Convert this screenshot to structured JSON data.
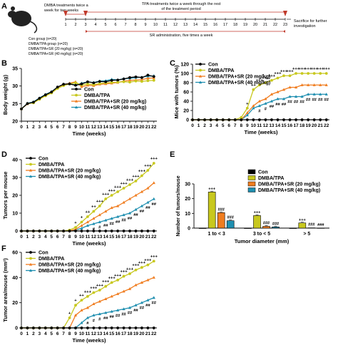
{
  "colors": {
    "con": "#000000",
    "dmba": "#c8c81e",
    "sr20": "#f07d20",
    "sr40": "#1f8fb0",
    "arrow": "#c0392b"
  },
  "schematic": {
    "panel": "A",
    "top_left": [
      "DMBA treatments twice a",
      "week for two weeks"
    ],
    "top_center": [
      "TPA treatments twice a week through the rest",
      "of the treatment period"
    ],
    "bottom_center": "SR administration, five times a week",
    "right": [
      "Sacrifice for further",
      "investigation"
    ],
    "ticks": [
      "1",
      "2",
      "3",
      "4",
      "5",
      "6",
      "7",
      "8",
      "9",
      "10",
      "11",
      "12",
      "13",
      "14",
      "15",
      "16",
      "17",
      "18",
      "19",
      "20",
      "21",
      "22",
      "23"
    ],
    "groups": [
      "Con group (n=20)",
      "DMBA/TPA group (n=20)",
      "DMBA/TPA+SR (20 mg/kg) (n=20)",
      "DMBA/TPA+SR (40 mg/kg) (n=20)"
    ]
  },
  "legend_labels": [
    "Con",
    "DMBA/TPA",
    "DMBA/TPA+SR (20 mg/kg)",
    "DMBA/TPA+SR (40 mg/kg)"
  ],
  "chart_data": [
    {
      "panel": "B",
      "type": "line",
      "xlabel": "Time (weeks)",
      "ylabel": "Body weight (g)",
      "x": [
        0,
        1,
        2,
        3,
        4,
        5,
        6,
        7,
        8,
        9,
        10,
        11,
        12,
        13,
        14,
        15,
        16,
        17,
        18,
        19,
        20,
        21,
        22
      ],
      "xticks": [
        0,
        1,
        2,
        3,
        4,
        5,
        6,
        7,
        8,
        9,
        10,
        11,
        12,
        13,
        14,
        15,
        16,
        17,
        18,
        19,
        20,
        21,
        22
      ],
      "ylim": [
        20,
        35
      ],
      "yticks": [
        20,
        25,
        30,
        35
      ],
      "series": [
        {
          "name": "Con",
          "values": [
            23.5,
            25.0,
            25.4,
            26.5,
            27.5,
            28.3,
            29.7,
            30.5,
            30.6,
            30.2,
            30.6,
            31.2,
            30.9,
            31.3,
            31.2,
            31.6,
            31.7,
            32.0,
            32.4,
            32.6,
            32.4,
            33.1,
            32.7
          ]
        },
        {
          "name": "DMBA/TPA",
          "values": [
            23.5,
            25.0,
            25.2,
            26.2,
            27.2,
            28.0,
            29.3,
            30.1,
            30.6,
            30.9,
            30.3,
            30.6,
            30.4,
            30.7,
            30.9,
            31.0,
            31.1,
            31.2,
            31.1,
            31.4,
            31.3,
            31.5,
            31.6
          ]
        },
        {
          "name": "DMBA/TPA+SR (20 mg/kg)",
          "values": [
            23.5,
            24.9,
            25.3,
            26.4,
            27.3,
            28.2,
            29.6,
            30.4,
            30.8,
            31.2,
            29.8,
            30.2,
            30.1,
            30.5,
            30.6,
            30.8,
            31.0,
            31.4,
            31.6,
            31.7,
            31.8,
            32.2,
            32.3
          ]
        },
        {
          "name": "DMBA/TPA+SR (40 mg/kg)",
          "values": [
            23.5,
            25.1,
            25.5,
            26.6,
            27.6,
            28.4,
            29.7,
            30.5,
            30.6,
            30.3,
            30.8,
            31.2,
            31.0,
            31.4,
            31.5,
            31.9,
            31.7,
            32.1,
            32.2,
            32.4,
            32.5,
            32.8,
            32.9
          ]
        }
      ]
    },
    {
      "panel": "C",
      "type": "line",
      "xlabel": "Time (weeks)",
      "ylabel": "Mice with tumors (%)",
      "x": [
        0,
        1,
        2,
        3,
        4,
        5,
        6,
        7,
        8,
        9,
        10,
        11,
        12,
        13,
        14,
        15,
        16,
        17,
        18,
        19,
        20,
        21,
        22
      ],
      "xticks": [
        0,
        1,
        2,
        3,
        4,
        5,
        6,
        7,
        8,
        9,
        10,
        11,
        12,
        13,
        14,
        15,
        16,
        17,
        18,
        19,
        20,
        21,
        22
      ],
      "ylim": [
        0,
        120
      ],
      "yticks": [
        0,
        20,
        40,
        60,
        80,
        100,
        120
      ],
      "series": [
        {
          "name": "Con",
          "values": [
            0,
            0,
            0,
            0,
            0,
            0,
            0,
            0,
            0,
            0,
            0,
            0,
            0,
            0,
            0,
            0,
            0,
            0,
            0,
            0,
            0,
            0,
            0
          ]
        },
        {
          "name": "DMBA/TPA",
          "values": [
            0,
            0,
            0,
            0,
            0,
            0,
            0,
            0,
            5,
            25,
            65,
            75,
            80,
            85,
            90,
            95,
            95,
            100,
            100,
            100,
            100,
            100,
            100
          ]
        },
        {
          "name": "DMBA/TPA+SR (20 mg/kg)",
          "values": [
            0,
            0,
            0,
            0,
            0,
            0,
            0,
            0,
            0,
            15,
            30,
            40,
            45,
            55,
            60,
            65,
            70,
            70,
            75,
            75,
            75,
            75,
            75
          ]
        },
        {
          "name": "DMBA/TPA+SR (40 mg/kg)",
          "values": [
            0,
            0,
            0,
            0,
            0,
            0,
            0,
            0,
            0,
            10,
            25,
            30,
            35,
            40,
            45,
            45,
            50,
            50,
            50,
            55,
            55,
            55,
            55
          ]
        }
      ],
      "annotations": [
        {
          "x": 9,
          "text": "+"
        },
        {
          "x": 10,
          "text": "++"
        },
        {
          "x": 11,
          "text": "+++"
        },
        {
          "x": 12,
          "text": "+++"
        },
        {
          "x": 13,
          "text": "+++"
        },
        {
          "x": 14,
          "text": "+++"
        },
        {
          "x": 15,
          "text": "+++"
        },
        {
          "x": 16,
          "text": "+++"
        },
        {
          "x": 17,
          "text": "+++"
        },
        {
          "x": 18,
          "text": "+++"
        },
        {
          "x": 19,
          "text": "+++"
        },
        {
          "x": 20,
          "text": "+++"
        },
        {
          "x": 21,
          "text": "+++"
        },
        {
          "x": 22,
          "text": "+++"
        },
        {
          "x": 11,
          "text": "#"
        },
        {
          "x": 12,
          "text": "#"
        },
        {
          "x": 13,
          "text": "##"
        },
        {
          "x": 14,
          "text": "##"
        },
        {
          "x": 15,
          "text": "##"
        },
        {
          "x": 16,
          "text": "##"
        },
        {
          "x": 17,
          "text": "##"
        },
        {
          "x": 18,
          "text": "##"
        },
        {
          "x": 19,
          "text": "##"
        },
        {
          "x": 20,
          "text": "##"
        },
        {
          "x": 21,
          "text": "##"
        },
        {
          "x": 22,
          "text": "##"
        }
      ]
    },
    {
      "panel": "D",
      "type": "line",
      "xlabel": "Time (weeks)",
      "ylabel": "Tumors per mouse",
      "x": [
        0,
        1,
        2,
        3,
        4,
        5,
        6,
        7,
        8,
        9,
        10,
        11,
        12,
        13,
        14,
        15,
        16,
        17,
        18,
        19,
        20,
        21,
        22
      ],
      "xticks": [
        0,
        1,
        2,
        3,
        4,
        5,
        6,
        7,
        8,
        9,
        10,
        11,
        12,
        13,
        14,
        15,
        16,
        17,
        18,
        19,
        20,
        21,
        22
      ],
      "ylim": [
        0,
        40
      ],
      "yticks": [
        0,
        10,
        20,
        30,
        40
      ],
      "series": [
        {
          "name": "Con",
          "values": [
            0,
            0,
            0,
            0,
            0,
            0,
            0,
            0,
            0,
            0,
            0,
            0,
            0,
            0,
            0,
            0,
            0,
            0,
            0,
            0,
            0,
            0,
            0
          ]
        },
        {
          "name": "DMBA/TPA",
          "values": [
            0,
            0,
            0,
            0,
            0,
            0,
            0,
            0,
            0.5,
            2,
            5,
            8,
            11,
            14,
            18,
            20,
            22,
            24,
            26,
            28,
            31,
            34,
            38
          ]
        },
        {
          "name": "DMBA/TPA+SR (20 mg/kg)",
          "values": [
            0,
            0,
            0,
            0,
            0,
            0,
            0,
            0,
            0,
            1,
            3,
            5,
            7,
            9,
            11,
            13,
            14,
            16,
            18,
            20,
            22,
            24,
            27
          ]
        },
        {
          "name": "DMBA/TPA+SR (40 mg/kg)",
          "values": [
            0,
            0,
            0,
            0,
            0,
            0,
            0,
            0,
            0,
            0.5,
            1.5,
            3,
            4,
            5,
            6,
            7,
            8,
            9,
            10,
            12,
            14,
            16,
            18
          ]
        }
      ],
      "annotations": [
        {
          "x": 9,
          "text": "+"
        },
        {
          "x": 10,
          "text": "+"
        },
        {
          "x": 11,
          "text": "++"
        },
        {
          "x": 12,
          "text": "++"
        },
        {
          "x": 13,
          "text": "+++"
        },
        {
          "x": 14,
          "text": "+++"
        },
        {
          "x": 15,
          "text": "+++"
        },
        {
          "x": 16,
          "text": "+++"
        },
        {
          "x": 17,
          "text": "+++"
        },
        {
          "x": 18,
          "text": "+++"
        },
        {
          "x": 19,
          "text": "+++"
        },
        {
          "x": 20,
          "text": "+++"
        },
        {
          "x": 21,
          "text": "+++"
        },
        {
          "x": 22,
          "text": "+++"
        },
        {
          "x": 12,
          "text": "#"
        },
        {
          "x": 13,
          "text": "#"
        },
        {
          "x": 14,
          "text": "##"
        },
        {
          "x": 15,
          "text": "##"
        },
        {
          "x": 16,
          "text": "##"
        },
        {
          "x": 17,
          "text": "##"
        },
        {
          "x": 18,
          "text": "##"
        },
        {
          "x": 19,
          "text": "##"
        },
        {
          "x": 20,
          "text": "##"
        },
        {
          "x": 21,
          "text": "##"
        },
        {
          "x": 22,
          "text": "##"
        }
      ]
    },
    {
      "panel": "E",
      "type": "bar",
      "xlabel": "Tumor diameter (mm)",
      "ylabel": "Number of tumors/mouse",
      "categories": [
        "1 to < 3",
        "3 to < 5",
        "> 5"
      ],
      "ylim": [
        0,
        30
      ],
      "yticks": [
        0,
        10,
        20,
        30
      ],
      "series": [
        {
          "name": "Con",
          "values": [
            0,
            0,
            0
          ]
        },
        {
          "name": "DMBA/TPA",
          "values": [
            24.5,
            8.5,
            3.5
          ]
        },
        {
          "name": "DMBA/TPA+SR (20 mg/kg)",
          "values": [
            10.5,
            1.2,
            0.2
          ]
        },
        {
          "name": "DMBA/TPA+SR (40 mg/kg)",
          "values": [
            5.0,
            0.8,
            0.1
          ]
        }
      ],
      "annotations": [
        {
          "category": 0,
          "series": 1,
          "text": "+++"
        },
        {
          "category": 0,
          "series": 2,
          "text": "###"
        },
        {
          "category": 0,
          "series": 3,
          "text": "###"
        },
        {
          "category": 1,
          "series": 1,
          "text": "+++"
        },
        {
          "category": 1,
          "series": 2,
          "text": "###"
        },
        {
          "category": 1,
          "series": 3,
          "text": "###"
        },
        {
          "category": 2,
          "series": 1,
          "text": "+++"
        },
        {
          "category": 2,
          "series": 2,
          "text": "###"
        },
        {
          "category": 2,
          "series": 3,
          "text": "###"
        }
      ]
    },
    {
      "panel": "F",
      "type": "line",
      "xlabel": "Time (weeks)",
      "ylabel": "Tumor area/mouse (mm²)",
      "x": [
        0,
        1,
        2,
        3,
        4,
        5,
        6,
        7,
        8,
        9,
        10,
        11,
        12,
        13,
        14,
        15,
        16,
        17,
        18,
        19,
        20,
        21,
        22
      ],
      "xticks": [
        0,
        1,
        2,
        3,
        4,
        5,
        6,
        7,
        8,
        9,
        10,
        11,
        12,
        13,
        14,
        15,
        16,
        17,
        18,
        19,
        20,
        21,
        22
      ],
      "ylim": [
        0,
        60
      ],
      "yticks": [
        0,
        20,
        40,
        60
      ],
      "series": [
        {
          "name": "Con",
          "values": [
            0,
            0,
            0,
            0,
            0,
            0,
            0,
            0,
            0,
            0,
            0,
            0,
            0,
            0,
            0,
            0,
            0,
            0,
            0,
            0,
            0,
            0,
            0
          ]
        },
        {
          "name": "DMBA/TPA",
          "values": [
            0,
            0,
            0,
            0,
            0,
            0,
            0,
            0,
            8,
            18,
            22,
            25,
            28,
            30,
            33,
            36,
            38,
            41,
            43,
            46,
            48,
            50,
            53
          ]
        },
        {
          "name": "DMBA/TPA+SR (20 mg/kg)",
          "values": [
            0,
            0,
            0,
            0,
            0,
            0,
            0,
            0,
            0,
            10,
            14,
            16,
            19,
            21,
            23,
            25,
            27,
            29,
            31,
            34,
            36,
            38,
            40
          ]
        },
        {
          "name": "DMBA/TPA+SR (40 mg/kg)",
          "values": [
            0,
            0,
            0,
            0,
            0,
            0,
            0,
            0,
            0,
            0,
            4,
            8,
            10,
            11,
            12,
            13,
            14,
            15,
            16,
            18,
            20,
            22,
            24
          ]
        }
      ],
      "annotations": [
        {
          "x": 8,
          "text": "+"
        },
        {
          "x": 9,
          "text": "+"
        },
        {
          "x": 10,
          "text": "++"
        },
        {
          "x": 11,
          "text": "+++"
        },
        {
          "x": 12,
          "text": "+++"
        },
        {
          "x": 13,
          "text": "+++"
        },
        {
          "x": 14,
          "text": "+++"
        },
        {
          "x": 15,
          "text": "+++"
        },
        {
          "x": 16,
          "text": "+++"
        },
        {
          "x": 17,
          "text": "+++"
        },
        {
          "x": 18,
          "text": "+++"
        },
        {
          "x": 19,
          "text": "+++"
        },
        {
          "x": 20,
          "text": "+++"
        },
        {
          "x": 21,
          "text": "+++"
        },
        {
          "x": 22,
          "text": "+++"
        },
        {
          "x": 11,
          "text": "#"
        },
        {
          "x": 12,
          "text": "#"
        },
        {
          "x": 13,
          "text": "#"
        },
        {
          "x": 14,
          "text": "##"
        },
        {
          "x": 15,
          "text": "##"
        },
        {
          "x": 16,
          "text": "##"
        },
        {
          "x": 17,
          "text": "##"
        },
        {
          "x": 18,
          "text": "##"
        },
        {
          "x": 19,
          "text": "##"
        },
        {
          "x": 20,
          "text": "##"
        },
        {
          "x": 21,
          "text": "##"
        },
        {
          "x": 22,
          "text": "##"
        }
      ]
    }
  ]
}
